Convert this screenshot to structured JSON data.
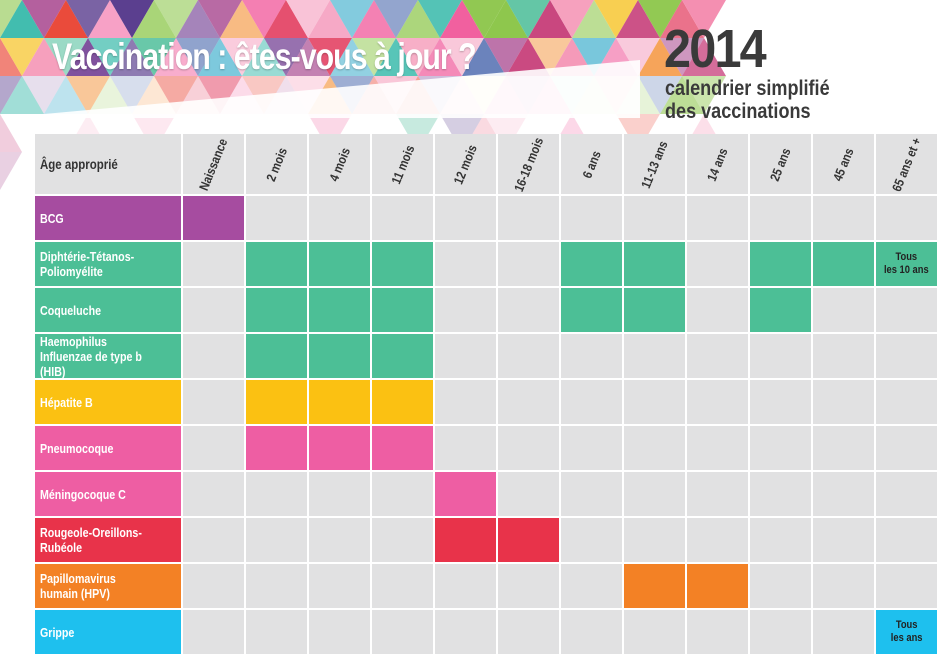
{
  "header": {
    "title": "Vaccination : êtes-vous à jour ?",
    "year": "2014",
    "subtitle_line1": "calendrier simplifié",
    "subtitle_line2": "des vaccinations"
  },
  "table": {
    "corner_label": "Âge approprié",
    "columns": [
      "Naissance",
      "2 mois",
      "4 mois",
      "11 mois",
      "12 mois",
      "16-18 mois",
      "6 ans",
      "11-13 ans",
      "14 ans",
      "25 ans",
      "45 ans",
      "65 ans et +"
    ],
    "rows": [
      {
        "name": "BCG",
        "color": "#a64ca0",
        "cells": [
          1,
          0,
          0,
          0,
          0,
          0,
          0,
          0,
          0,
          0,
          0,
          0
        ]
      },
      {
        "name": "Diphtérie-Tétanos-\nPoliomyélite",
        "color": "#4cbf96",
        "cells": [
          0,
          1,
          1,
          1,
          0,
          0,
          1,
          1,
          0,
          1,
          1,
          1
        ]
      },
      {
        "name": "Coqueluche",
        "color": "#4cbf96",
        "cells": [
          0,
          1,
          1,
          1,
          0,
          0,
          1,
          1,
          0,
          1,
          0,
          0
        ]
      },
      {
        "name": "Haemophilus\nInfluenzae de type b (HIB)",
        "color": "#4cbf96",
        "cells": [
          0,
          1,
          1,
          1,
          0,
          0,
          0,
          0,
          0,
          0,
          0,
          0
        ]
      },
      {
        "name": "Hépatite B",
        "color": "#fbc112",
        "cells": [
          0,
          1,
          1,
          1,
          0,
          0,
          0,
          0,
          0,
          0,
          0,
          0
        ]
      },
      {
        "name": "Pneumocoque",
        "color": "#ee5ea3",
        "cells": [
          0,
          1,
          1,
          1,
          0,
          0,
          0,
          0,
          0,
          0,
          0,
          0
        ]
      },
      {
        "name": "Méningocoque C",
        "color": "#ee5ea3",
        "cells": [
          0,
          0,
          0,
          0,
          1,
          0,
          0,
          0,
          0,
          0,
          0,
          0
        ]
      },
      {
        "name": "Rougeole-Oreillons-\nRubéole",
        "color": "#e8334a",
        "cells": [
          0,
          0,
          0,
          0,
          1,
          1,
          0,
          0,
          0,
          0,
          0,
          0
        ]
      },
      {
        "name": "Papillomavirus\nhumain (HPV)",
        "color": "#f38125",
        "cells": [
          0,
          0,
          0,
          0,
          0,
          0,
          0,
          1,
          1,
          0,
          0,
          0
        ]
      },
      {
        "name": "Grippe",
        "color": "#1ec0ee",
        "cells": [
          0,
          0,
          0,
          0,
          0,
          0,
          0,
          0,
          0,
          0,
          0,
          1
        ]
      }
    ],
    "notes": [
      {
        "row": 1,
        "col": 11,
        "text": "Tous\nles 10 ans"
      },
      {
        "row": 9,
        "col": 11,
        "text": "Tous\nles ans"
      }
    ],
    "empty_color": "#e1e1e2"
  }
}
